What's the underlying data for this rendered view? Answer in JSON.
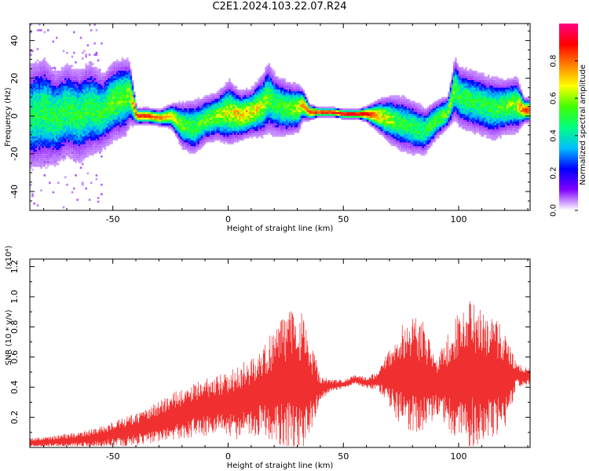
{
  "page": {
    "title": "C2E1.2024.103.22.07.R24"
  },
  "chart_data": [
    {
      "type": "heatmap",
      "xlabel": "Height of straight line (km)",
      "ylabel": "Frequency (Hz)",
      "xlim": [
        -86,
        131
      ],
      "ylim": [
        -50,
        49
      ],
      "xticks": [
        -50,
        0,
        50,
        100
      ],
      "yticks": [
        -40,
        -20,
        0,
        20,
        40
      ],
      "grid": false,
      "colorbar": {
        "label": "Normalized spectral amplitude",
        "range": [
          0.0,
          1.0
        ],
        "ticks": [
          "0.0",
          "0.2",
          "0.4",
          "0.6",
          "0.8"
        ],
        "colormap": [
          "#ffffff",
          "#8000ff",
          "#0000ff",
          "#00c0ff",
          "#00ff80",
          "#40ff00",
          "#ffff00",
          "#ff8000",
          "#ff0000",
          "#ff0080"
        ]
      },
      "ridge": {
        "x": [
          -86,
          -80,
          -75,
          -70,
          -65,
          -60,
          -55,
          -50,
          -45,
          -43,
          -40,
          -35,
          -30,
          -25,
          -20,
          -15,
          -10,
          -5,
          0,
          5,
          10,
          15,
          17,
          20,
          25,
          30,
          32,
          35,
          40,
          45,
          50,
          55,
          60,
          65,
          70,
          75,
          80,
          85,
          90,
          95,
          98,
          100,
          105,
          110,
          115,
          120,
          125,
          128,
          131
        ],
        "y": [
          0,
          2,
          -1,
          3,
          0,
          4,
          2,
          8,
          10,
          12,
          0,
          0,
          -1,
          0,
          -5,
          -6,
          -2,
          0,
          2,
          0,
          2,
          6,
          10,
          6,
          4,
          4,
          6,
          2,
          2,
          2,
          1,
          1,
          1,
          0,
          -2,
          -4,
          -6,
          -8,
          -2,
          2,
          15,
          10,
          8,
          6,
          4,
          5,
          6,
          3,
          3
        ],
        "spread": [
          14,
          14,
          12,
          12,
          12,
          12,
          10,
          10,
          10,
          8,
          2,
          2,
          2,
          3,
          6,
          7,
          6,
          6,
          8,
          6,
          6,
          8,
          9,
          8,
          7,
          6,
          4,
          2,
          1,
          1,
          1,
          1,
          2,
          4,
          6,
          7,
          7,
          6,
          5,
          4,
          8,
          8,
          8,
          8,
          8,
          7,
          7,
          3,
          3
        ],
        "peak": [
          0.45,
          0.5,
          0.5,
          0.5,
          0.5,
          0.5,
          0.5,
          0.55,
          0.55,
          0.6,
          0.85,
          0.85,
          0.8,
          0.7,
          0.55,
          0.5,
          0.55,
          0.6,
          0.65,
          0.7,
          0.7,
          0.6,
          0.55,
          0.5,
          0.55,
          0.6,
          0.75,
          0.85,
          0.9,
          0.9,
          0.95,
          0.95,
          0.9,
          0.75,
          0.6,
          0.5,
          0.5,
          0.5,
          0.55,
          0.6,
          0.55,
          0.5,
          0.5,
          0.5,
          0.5,
          0.55,
          0.6,
          0.85,
          0.85
        ]
      }
    },
    {
      "type": "line",
      "xlabel": "Height of straight line (km)",
      "ylabel": "SNR (10 * v/v)",
      "y_multiplier": "(x10⁴)",
      "xlim": [
        -86,
        131
      ],
      "ylim": [
        0.0,
        1.25
      ],
      "xticks": [
        -50,
        0,
        50,
        100
      ],
      "yticks": [
        0.2,
        0.4,
        0.6,
        0.8,
        1.0,
        1.2
      ],
      "grid": false,
      "series": [
        {
          "color": "#f03030",
          "x": [
            -86,
            -75,
            -65,
            -55,
            -45,
            -35,
            -25,
            -15,
            -5,
            5,
            15,
            22,
            28,
            32,
            36,
            40,
            45,
            50,
            55,
            60,
            65,
            70,
            75,
            80,
            85,
            90,
            95,
            100,
            105,
            110,
            115,
            120,
            125,
            131
          ],
          "base": [
            0.03,
            0.04,
            0.05,
            0.07,
            0.1,
            0.14,
            0.2,
            0.25,
            0.28,
            0.3,
            0.38,
            0.42,
            0.45,
            0.42,
            0.4,
            0.4,
            0.41,
            0.42,
            0.45,
            0.43,
            0.44,
            0.47,
            0.48,
            0.47,
            0.45,
            0.42,
            0.44,
            0.46,
            0.48,
            0.47,
            0.46,
            0.46,
            0.48,
            0.47
          ],
          "amp": [
            0.03,
            0.04,
            0.05,
            0.07,
            0.1,
            0.12,
            0.16,
            0.18,
            0.2,
            0.25,
            0.3,
            0.4,
            0.5,
            0.48,
            0.3,
            0.08,
            0.04,
            0.03,
            0.03,
            0.04,
            0.06,
            0.2,
            0.35,
            0.4,
            0.38,
            0.2,
            0.3,
            0.45,
            0.5,
            0.45,
            0.4,
            0.35,
            0.08,
            0.05
          ]
        }
      ]
    }
  ]
}
